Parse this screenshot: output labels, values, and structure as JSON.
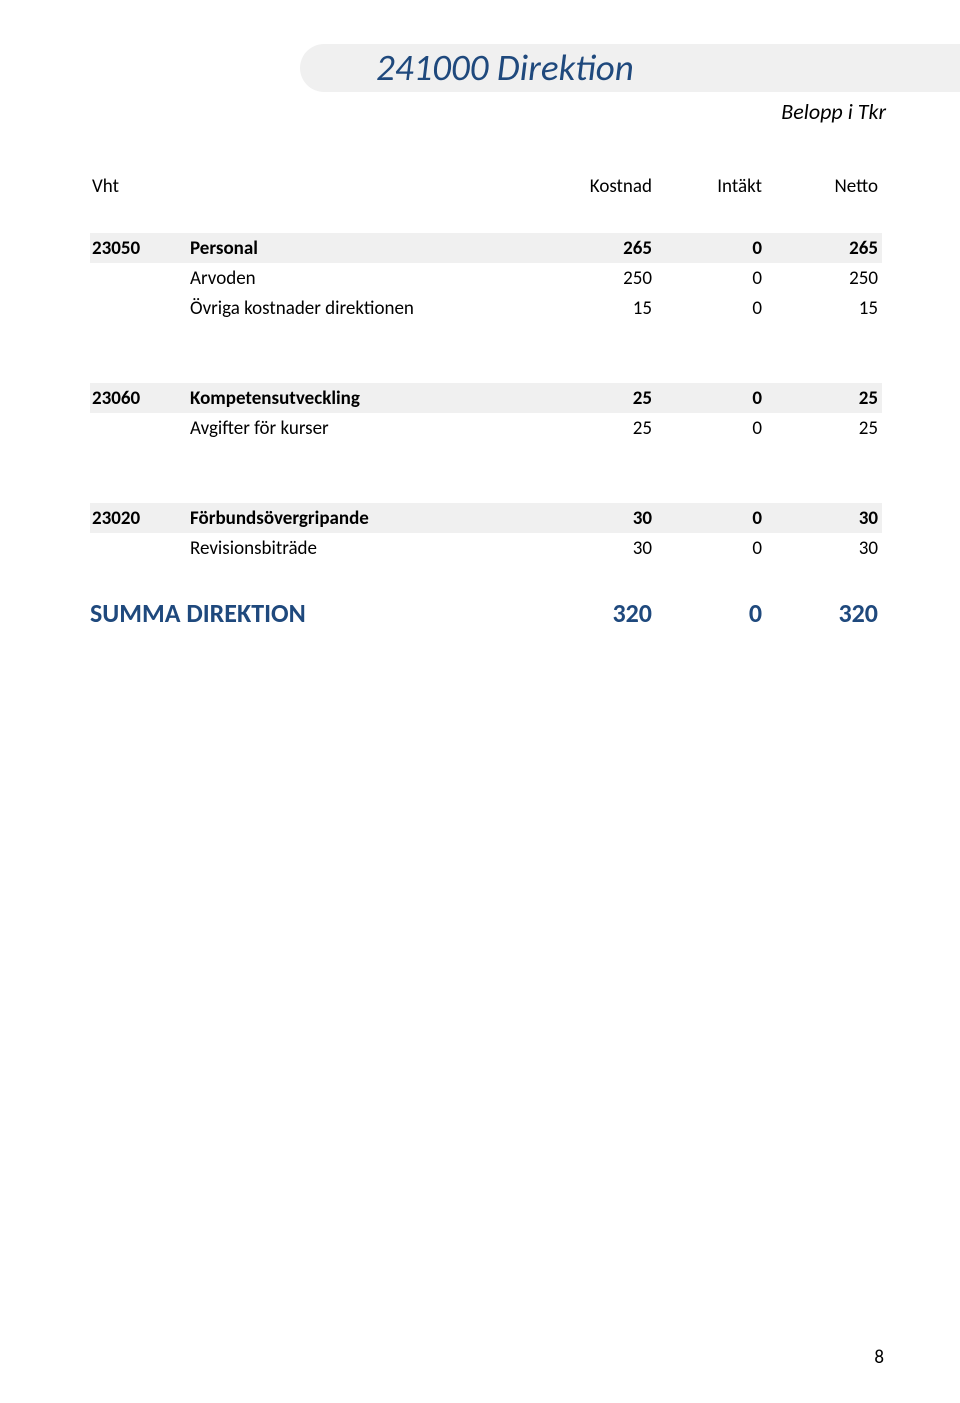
{
  "colors": {
    "title_color": "#1f497d",
    "text_color": "#000000",
    "shade_bg": "#f0f0f0",
    "page_bg": "#ffffff"
  },
  "page_title": "241000 Direktion",
  "subtitle": "Belopp i Tkr",
  "columns": {
    "c1": "Vht",
    "c2": "",
    "c3": "Kostnad",
    "c4": "Intäkt",
    "c5": "Netto"
  },
  "groups": [
    {
      "code": "23050",
      "label": "Personal",
      "kostnad": "265",
      "intakt": "0",
      "netto": "265",
      "rows": [
        {
          "label": "Arvoden",
          "kostnad": "250",
          "intakt": "0",
          "netto": "250"
        },
        {
          "label": "Övriga kostnader direktionen",
          "kostnad": "15",
          "intakt": "0",
          "netto": "15"
        }
      ]
    },
    {
      "code": "23060",
      "label": "Kompetensutveckling",
      "kostnad": "25",
      "intakt": "0",
      "netto": "25",
      "rows": [
        {
          "label": "Avgifter för kurser",
          "kostnad": "25",
          "intakt": "0",
          "netto": "25"
        }
      ]
    },
    {
      "code": "23020",
      "label": "Förbundsövergripande",
      "kostnad": "30",
      "intakt": "0",
      "netto": "30",
      "rows": [
        {
          "label": "Revisionsbiträde",
          "kostnad": "30",
          "intakt": "0",
          "netto": "30"
        }
      ]
    }
  ],
  "summary": {
    "label": "SUMMA DIREKTION",
    "kostnad": "320",
    "intakt": "0",
    "netto": "320"
  },
  "page_number": "8"
}
